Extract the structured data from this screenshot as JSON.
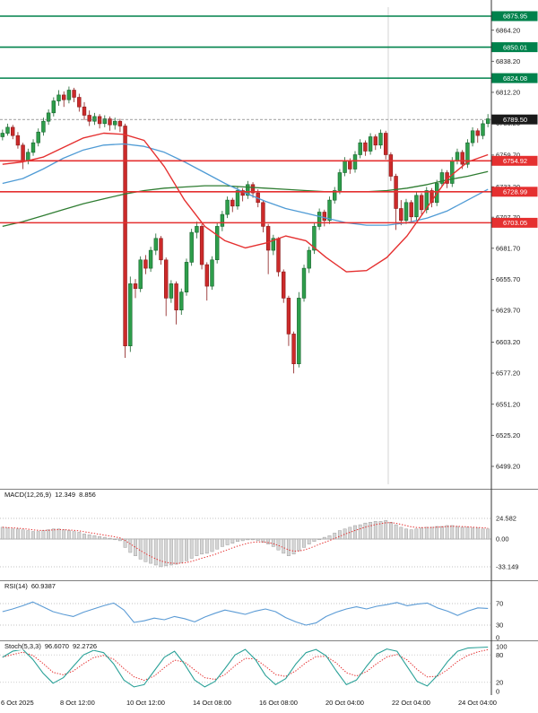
{
  "colors": {
    "bull": "#2e9e4b",
    "bull_border": "#17632c",
    "bear": "#cc2a2a",
    "bear_border": "#8a1a1a",
    "ma_fast": "#e53030",
    "ma_mid": "#4f9bd5",
    "ma_slow": "#2f7d32",
    "resistance": "#00824c",
    "support": "#e53030",
    "current_price_bg": "#1a1a1a",
    "macd_hist_fill": "#d6d6d6",
    "macd_hist_border": "#9e9e9e",
    "macd_signal": "#e53030",
    "rsi_line": "#5b9bd5",
    "stoch_k": "#2aa198",
    "stoch_d": "#e53030",
    "axis_text": "#1a1a1a",
    "grid_dotted": "#b0b0b0",
    "separator": "#808080"
  },
  "chart_data": {
    "type": "candlestick",
    "timeframe_note": "4h candles, 6 Oct 2025 - 24 Oct 2025",
    "y_anchor": {
      "price_high": 6875.95,
      "price_low": 6499.2
    },
    "price_axis": {
      "ticks": [
        "6864.20",
        "6838.20",
        "6812.20",
        "6786.20",
        "6759.70",
        "6733.20",
        "6707.70",
        "6681.70",
        "6655.70",
        "6629.70",
        "6603.20",
        "6577.20",
        "6551.20",
        "6525.20",
        "6499.20"
      ]
    },
    "levels": {
      "resistance": [
        {
          "value": 6875.95,
          "label": "6875.95"
        },
        {
          "value": 6850.01,
          "label": "6850.01"
        },
        {
          "value": 6824.08,
          "label": "6824.08"
        }
      ],
      "support": [
        {
          "value": 6754.92,
          "label": "6754.92"
        },
        {
          "value": 6728.99,
          "label": "6728.99"
        },
        {
          "value": 6703.05,
          "label": "6703.05"
        }
      ]
    },
    "current_price": "6789.50",
    "x_labels": [
      "6 Oct 2025",
      "8 Oct 12:00",
      "10 Oct 12:00",
      "14 Oct 08:00",
      "16 Oct 08:00",
      "20 Oct 04:00",
      "22 Oct 04:00",
      "24 Oct 04:00"
    ],
    "candles": [
      [
        6775,
        6781,
        6772,
        6778
      ],
      [
        6778,
        6786,
        6776,
        6783
      ],
      [
        6783,
        6785,
        6773,
        6776
      ],
      [
        6776,
        6779,
        6765,
        6768
      ],
      [
        6768,
        6770,
        6748,
        6755
      ],
      [
        6755,
        6765,
        6752,
        6762
      ],
      [
        6762,
        6773,
        6759,
        6770
      ],
      [
        6770,
        6782,
        6767,
        6779
      ],
      [
        6779,
        6791,
        6776,
        6788
      ],
      [
        6788,
        6798,
        6785,
        6795
      ],
      [
        6795,
        6808,
        6792,
        6805
      ],
      [
        6805,
        6814,
        6801,
        6810
      ],
      [
        6810,
        6813,
        6800,
        6806
      ],
      [
        6806,
        6817,
        6803,
        6814
      ],
      [
        6814,
        6816,
        6804,
        6808
      ],
      [
        6808,
        6811,
        6796,
        6800
      ],
      [
        6800,
        6804,
        6789,
        6793
      ],
      [
        6793,
        6797,
        6784,
        6788
      ],
      [
        6788,
        6795,
        6785,
        6792
      ],
      [
        6792,
        6794,
        6782,
        6786
      ],
      [
        6786,
        6793,
        6783,
        6790
      ],
      [
        6790,
        6792,
        6780,
        6785
      ],
      [
        6785,
        6791,
        6781,
        6788
      ],
      [
        6788,
        6790,
        6779,
        6784
      ],
      [
        6784,
        6786,
        6590,
        6600
      ],
      [
        6600,
        6658,
        6595,
        6652
      ],
      [
        6652,
        6656,
        6640,
        6648
      ],
      [
        6648,
        6675,
        6645,
        6672
      ],
      [
        6672,
        6676,
        6660,
        6665
      ],
      [
        6665,
        6683,
        6662,
        6680
      ],
      [
        6680,
        6694,
        6676,
        6690
      ],
      [
        6690,
        6692,
        6668,
        6672
      ],
      [
        6672,
        6674,
        6625,
        6640
      ],
      [
        6640,
        6655,
        6636,
        6652
      ],
      [
        6652,
        6654,
        6618,
        6630
      ],
      [
        6630,
        6648,
        6626,
        6645
      ],
      [
        6645,
        6673,
        6642,
        6670
      ],
      [
        6670,
        6698,
        6667,
        6695
      ],
      [
        6695,
        6704,
        6690,
        6700
      ],
      [
        6700,
        6702,
        6664,
        6668
      ],
      [
        6668,
        6670,
        6638,
        6650
      ],
      [
        6650,
        6675,
        6647,
        6672
      ],
      [
        6672,
        6703,
        6669,
        6700
      ],
      [
        6700,
        6713,
        6696,
        6710
      ],
      [
        6710,
        6725,
        6707,
        6722
      ],
      [
        6722,
        6724,
        6712,
        6717
      ],
      [
        6717,
        6733,
        6714,
        6730
      ],
      [
        6730,
        6732,
        6721,
        6726
      ],
      [
        6726,
        6738,
        6723,
        6735
      ],
      [
        6735,
        6737,
        6724,
        6728
      ],
      [
        6728,
        6731,
        6716,
        6720
      ],
      [
        6720,
        6722,
        6695,
        6700
      ],
      [
        6700,
        6702,
        6660,
        6680
      ],
      [
        6680,
        6693,
        6676,
        6690
      ],
      [
        6690,
        6691,
        6658,
        6662
      ],
      [
        6662,
        6664,
        6636,
        6640
      ],
      [
        6640,
        6642,
        6600,
        6610
      ],
      [
        6610,
        6612,
        6577,
        6585
      ],
      [
        6585,
        6645,
        6582,
        6640
      ],
      [
        6640,
        6668,
        6637,
        6665
      ],
      [
        6665,
        6683,
        6661,
        6680
      ],
      [
        6680,
        6703,
        6677,
        6700
      ],
      [
        6700,
        6715,
        6697,
        6712
      ],
      [
        6712,
        6714,
        6700,
        6705
      ],
      [
        6705,
        6725,
        6702,
        6722
      ],
      [
        6722,
        6733,
        6719,
        6730
      ],
      [
        6730,
        6748,
        6727,
        6745
      ],
      [
        6745,
        6758,
        6742,
        6755
      ],
      [
        6755,
        6757,
        6744,
        6748
      ],
      [
        6748,
        6763,
        6745,
        6760
      ],
      [
        6760,
        6773,
        6757,
        6770
      ],
      [
        6770,
        6772,
        6759,
        6763
      ],
      [
        6763,
        6778,
        6760,
        6775
      ],
      [
        6775,
        6777,
        6764,
        6768
      ],
      [
        6768,
        6781,
        6765,
        6778
      ],
      [
        6778,
        6780,
        6756,
        6760
      ],
      [
        6760,
        6762,
        6738,
        6742
      ],
      [
        6742,
        6744,
        6697,
        6715
      ],
      [
        6715,
        6722,
        6701,
        6705
      ],
      [
        6705,
        6723,
        6702,
        6720
      ],
      [
        6720,
        6722,
        6704,
        6708
      ],
      [
        6708,
        6729,
        6705,
        6726
      ],
      [
        6726,
        6728,
        6710,
        6714
      ],
      [
        6714,
        6733,
        6711,
        6730
      ],
      [
        6730,
        6732,
        6716,
        6720
      ],
      [
        6720,
        6739,
        6717,
        6736
      ],
      [
        6736,
        6748,
        6733,
        6745
      ],
      [
        6745,
        6747,
        6732,
        6736
      ],
      [
        6736,
        6758,
        6733,
        6755
      ],
      [
        6755,
        6765,
        6752,
        6762
      ],
      [
        6762,
        6764,
        6748,
        6752
      ],
      [
        6752,
        6773,
        6749,
        6770
      ],
      [
        6770,
        6783,
        6767,
        6780
      ],
      [
        6780,
        6782,
        6770,
        6776
      ],
      [
        6776,
        6789,
        6773,
        6786
      ],
      [
        6786,
        6794,
        6783,
        6790
      ]
    ],
    "overlays": {
      "ma_red": [
        6752,
        6754,
        6758,
        6766,
        6774,
        6778,
        6777,
        6772,
        6750,
        6722,
        6700,
        6688,
        6682,
        6686,
        6692,
        6688,
        6674,
        6662,
        6663,
        6674,
        6692,
        6716,
        6740,
        6754,
        6760
      ],
      "ma_blue": [
        6736,
        6740,
        6748,
        6757,
        6764,
        6768,
        6769,
        6767,
        6762,
        6754,
        6745,
        6736,
        6728,
        6721,
        6715,
        6711,
        6707,
        6703,
        6701,
        6701,
        6703,
        6707,
        6713,
        6722,
        6731
      ],
      "ma_green": [
        6700,
        6704,
        6709,
        6714,
        6719,
        6723,
        6727,
        6730,
        6732,
        6733,
        6734,
        6734,
        6733,
        6732,
        6731,
        6730,
        6729,
        6729,
        6729,
        6730,
        6732,
        6735,
        6739,
        6742,
        6746
      ]
    },
    "macd": {
      "name": "MACD(12,26,9)",
      "value": "12.349",
      "value2": "8.856",
      "ticks": [
        {
          "v": 24.582,
          "label": "24.582"
        },
        {
          "v": 0,
          "label": "0.00"
        },
        {
          "v": -33.149,
          "label": "-33.149"
        }
      ],
      "hist": [
        14,
        13,
        12,
        12,
        11,
        10,
        9,
        9,
        10,
        11,
        12,
        12,
        11,
        10,
        9,
        8,
        6,
        5,
        4,
        3,
        2,
        1,
        0,
        -2,
        -10,
        -16,
        -20,
        -24,
        -27,
        -29,
        -31,
        -33,
        -32,
        -31,
        -30,
        -28,
        -26,
        -23,
        -20,
        -18,
        -17,
        -15,
        -12,
        -9,
        -7,
        -5,
        -3,
        -2,
        -1,
        -1,
        -2,
        -4,
        -6,
        -9,
        -13,
        -17,
        -20,
        -18,
        -14,
        -10,
        -6,
        -3,
        0,
        2,
        4,
        7,
        10,
        12,
        14,
        16,
        17,
        19,
        20,
        21,
        21,
        22,
        20,
        17,
        14,
        12,
        11,
        12,
        13,
        14,
        14,
        15,
        15,
        16,
        16,
        15,
        14,
        14,
        13,
        13,
        12,
        12
      ]
    },
    "rsi": {
      "name": "RSI(14)",
      "value": "60.9387",
      "ticks": [
        {
          "v": 70,
          "label": "70"
        },
        {
          "v": 30,
          "label": "30"
        },
        {
          "v": 0,
          "label": "0"
        }
      ],
      "guides": [
        70,
        30
      ],
      "values": [
        55,
        60,
        66,
        73,
        64,
        55,
        50,
        46,
        54,
        60,
        66,
        71,
        58,
        35,
        38,
        43,
        40,
        46,
        42,
        36,
        45,
        52,
        58,
        54,
        50,
        56,
        60,
        55,
        44,
        36,
        30,
        34,
        46,
        54,
        60,
        64,
        60,
        65,
        68,
        72,
        66,
        69,
        71,
        62,
        56,
        48,
        56,
        62,
        61
      ]
    },
    "stoch": {
      "name": "Stoch(5,3,3)",
      "value": "96.6070",
      "value2": "92.2726",
      "ticks": [
        {
          "v": 100,
          "label": "100"
        },
        {
          "v": 80,
          "label": "80"
        },
        {
          "v": 20,
          "label": "20"
        },
        {
          "v": 0,
          "label": "0"
        }
      ],
      "guides": [
        80,
        20
      ],
      "k": [
        75,
        88,
        92,
        70,
        40,
        18,
        30,
        55,
        80,
        90,
        85,
        60,
        25,
        10,
        15,
        45,
        75,
        88,
        60,
        25,
        10,
        22,
        50,
        80,
        92,
        70,
        35,
        15,
        28,
        60,
        85,
        92,
        78,
        45,
        15,
        25,
        55,
        82,
        93,
        88,
        55,
        22,
        12,
        35,
        65,
        88,
        95,
        96,
        97
      ]
    }
  }
}
